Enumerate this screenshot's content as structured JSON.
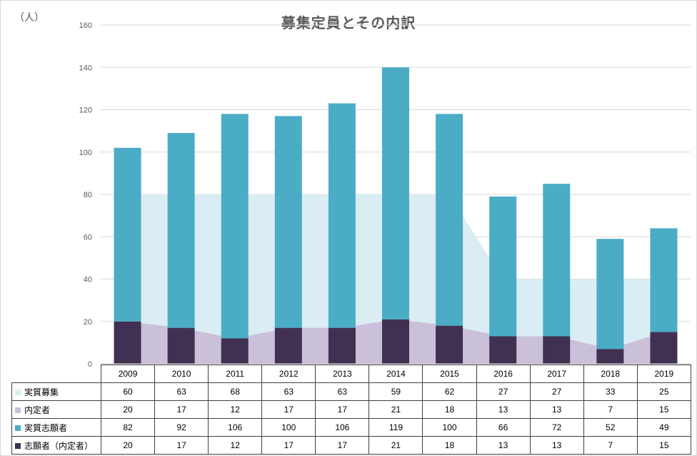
{
  "unit_label": "（人）",
  "chart_data": {
    "type": "bar",
    "title": "募集定員とその内訳",
    "ylim": [
      0,
      160
    ],
    "yticks": [
      0,
      20,
      40,
      60,
      80,
      100,
      120,
      140,
      160
    ],
    "grid": true,
    "categories": [
      "2009",
      "2010",
      "2011",
      "2012",
      "2013",
      "2014",
      "2015",
      "2016",
      "2017",
      "2018",
      "2019"
    ],
    "series": [
      {
        "name": "実質募集",
        "chart": "area",
        "stacked_on": "内定者",
        "color": "#daedf4",
        "values": [
          60,
          63,
          68,
          63,
          63,
          59,
          62,
          27,
          27,
          33,
          25
        ]
      },
      {
        "name": "内定者",
        "chart": "area",
        "color": "#cbc0da",
        "values": [
          20,
          17,
          12,
          17,
          17,
          21,
          18,
          13,
          13,
          7,
          15
        ]
      },
      {
        "name": "実質志願者",
        "chart": "stacked-bar",
        "stacked_on": "志願者（内定者）",
        "color": "#4bacc6",
        "values": [
          82,
          92,
          106,
          100,
          106,
          119,
          100,
          66,
          72,
          52,
          49
        ]
      },
      {
        "name": "志願者（内定者）",
        "chart": "stacked-bar",
        "color": "#403152",
        "values": [
          20,
          17,
          12,
          17,
          17,
          21,
          18,
          13,
          13,
          7,
          15
        ]
      }
    ]
  }
}
